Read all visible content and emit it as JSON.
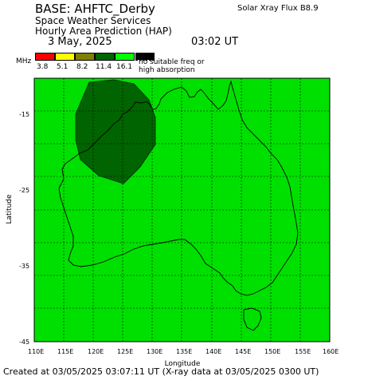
{
  "header": {
    "base_title": "BASE: AHFTC_Derby",
    "service": "Space Weather Services",
    "product": "Hourly Area Prediction (HAP)",
    "date": "3 May, 2025",
    "time": "03:02 UT",
    "solar_xray_flux": "Solar Xray Flux B8.9"
  },
  "legend": {
    "unit": "MHz",
    "values": [
      "3.8",
      "5.1",
      "8.2",
      "11.4",
      "16.1"
    ],
    "colors": [
      "#ff0000",
      "#ffff00",
      "#808000",
      "#006400",
      "#00ff00"
    ],
    "no_absorption_color": "#000000",
    "no_absorption_text_1": "no suitable freq or",
    "no_absorption_text_2": "high absorption"
  },
  "map": {
    "background_color": "#00e000",
    "region_color": "#006400",
    "coastline_color": "#000000",
    "grid": true,
    "xlabel": "Longitude",
    "ylabel": "Latitude",
    "lon_range": [
      110,
      160
    ],
    "lat_range": [
      -45,
      -5
    ],
    "lon_ticks": [
      "110E",
      "115E",
      "120E",
      "125E",
      "130E",
      "135E",
      "140E",
      "145E",
      "150E",
      "155E",
      "160E"
    ],
    "lat_ticks": [
      "-15",
      "-25",
      "-35",
      "-45"
    ]
  },
  "footer": {
    "created": "Created at 03/05/2025 03:07:11 UT (X-ray data at 03/05/2025 0300 UT)"
  }
}
